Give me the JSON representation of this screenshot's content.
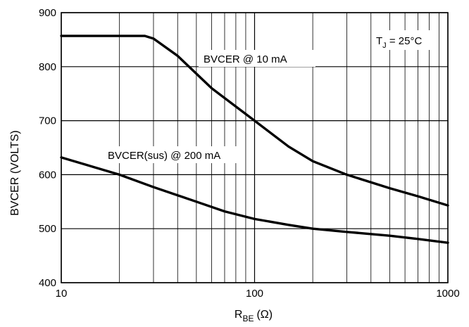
{
  "chart_data": {
    "type": "line",
    "xscale": "log",
    "xlim": [
      10,
      1000
    ],
    "ylim": [
      400,
      900
    ],
    "grid": true,
    "x_ticks": [
      {
        "value": 10,
        "label": "10"
      },
      {
        "value": 100,
        "label": "100"
      },
      {
        "value": 1000,
        "label": "1000"
      }
    ],
    "y_ticks": [
      {
        "value": 400,
        "label": "400"
      },
      {
        "value": 500,
        "label": "500"
      },
      {
        "value": 600,
        "label": "600"
      },
      {
        "value": 700,
        "label": "700"
      },
      {
        "value": 800,
        "label": "800"
      },
      {
        "value": 900,
        "label": "900"
      }
    ],
    "ylabel": "BVCER (VOLTS)",
    "xlabel": {
      "main": "R",
      "sub": "BE",
      "unit": "(Ω)"
    },
    "annotation_tj": {
      "main": "T",
      "sub": "J",
      "rest": " = 25°C"
    },
    "series": [
      {
        "name": "BVCER @ 10 mA",
        "x": [
          10,
          20,
          27,
          30,
          40,
          60,
          100,
          150,
          200,
          300,
          500,
          700,
          1000
        ],
        "y": [
          857,
          857,
          857,
          852,
          820,
          760,
          700,
          652,
          625,
          600,
          575,
          560,
          543
        ]
      },
      {
        "name": "BVCER(sus) @ 200 mA",
        "x": [
          10,
          20,
          30,
          50,
          70,
          100,
          150,
          200,
          300,
          500,
          700,
          1000
        ],
        "y": [
          632,
          600,
          577,
          550,
          532,
          518,
          507,
          500,
          494,
          487,
          481,
          474
        ]
      }
    ]
  }
}
